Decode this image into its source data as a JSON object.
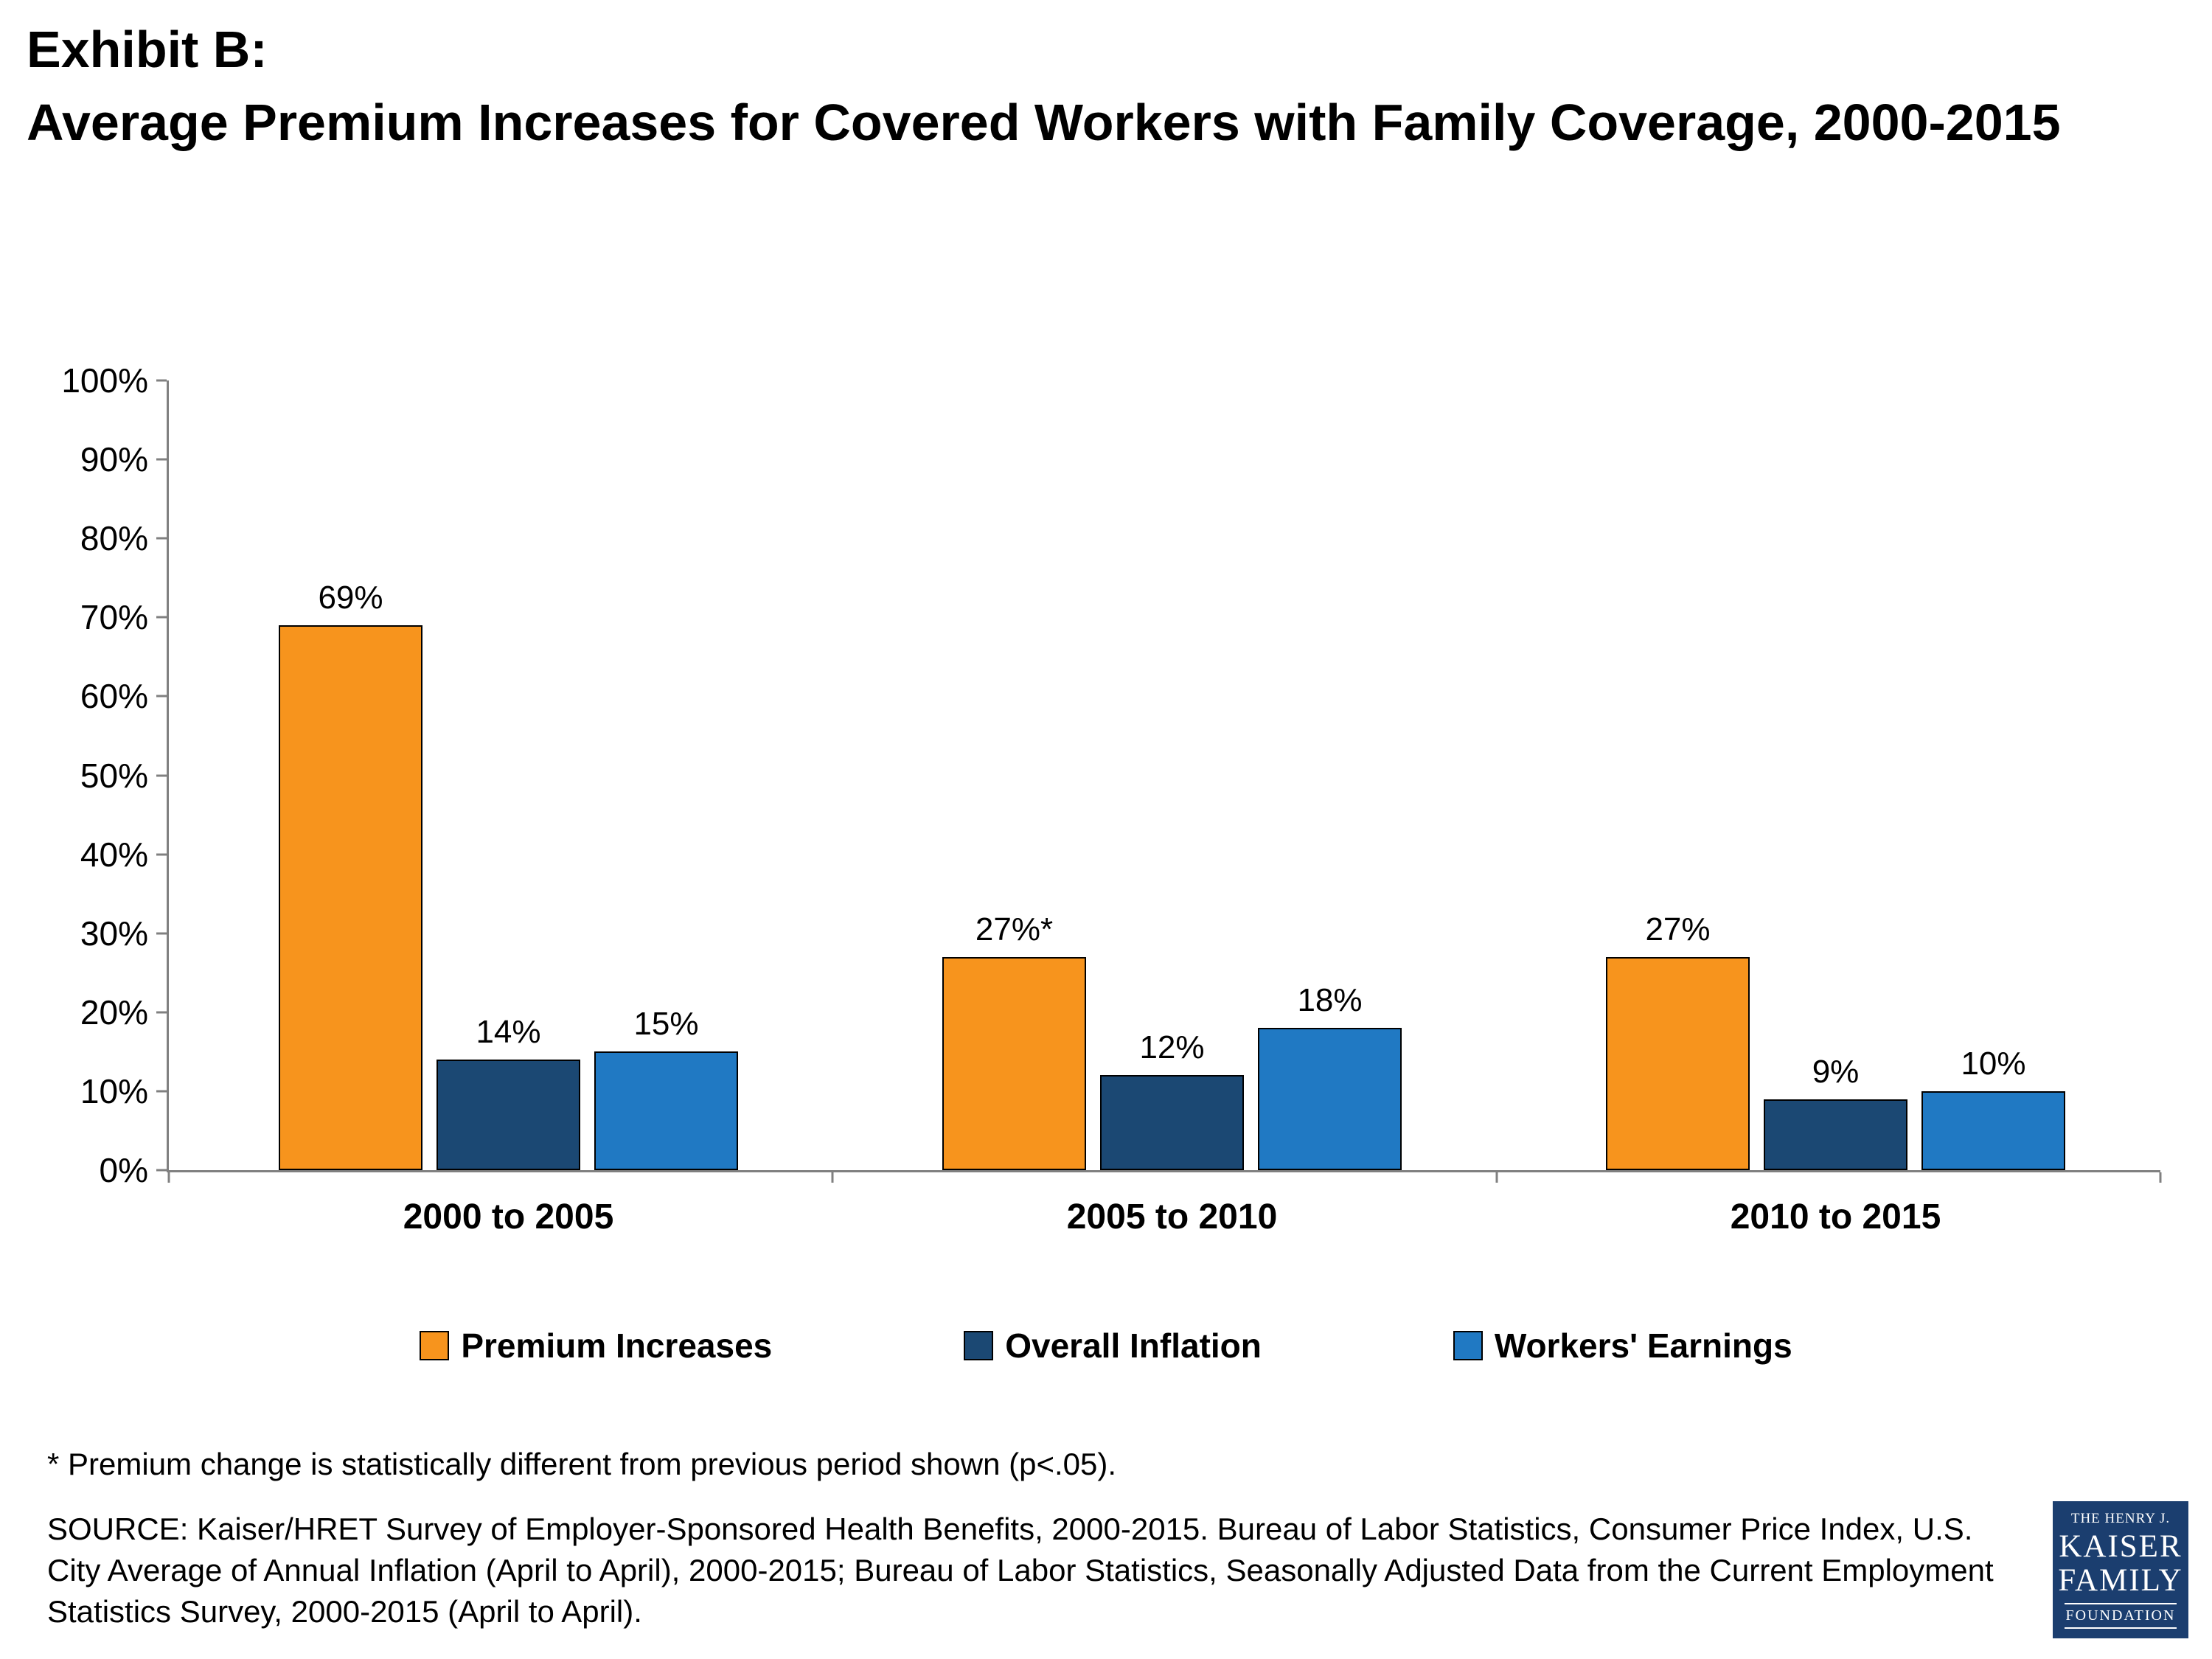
{
  "title": {
    "line1": "Exhibit B:",
    "line2": "Average Premium Increases for Covered Workers with Family Coverage, 2000-2015"
  },
  "chart_data": {
    "type": "bar",
    "categories": [
      "2000 to 2005",
      "2005 to 2010",
      "2010 to 2015"
    ],
    "series": [
      {
        "name": "Premium Increases",
        "color": "#F7941D",
        "values": [
          69,
          27,
          27
        ],
        "labels": [
          "69%",
          "27%*",
          "27%"
        ]
      },
      {
        "name": "Overall Inflation",
        "color": "#1B4873",
        "values": [
          14,
          12,
          9
        ],
        "labels": [
          "14%",
          "12%",
          "9%"
        ]
      },
      {
        "name": "Workers' Earnings",
        "color": "#2079C3",
        "values": [
          15,
          18,
          10
        ],
        "labels": [
          "15%",
          "18%",
          "10%"
        ]
      }
    ],
    "title": "Average Premium Increases for Covered Workers with Family Coverage, 2000-2015",
    "xlabel": "",
    "ylabel": "",
    "ylim": [
      0,
      100
    ],
    "ytick_interval": 10,
    "ytick_labels": [
      "0%",
      "10%",
      "20%",
      "30%",
      "40%",
      "50%",
      "60%",
      "70%",
      "80%",
      "90%",
      "100%"
    ],
    "grid": false,
    "legend_position": "bottom"
  },
  "footnote": "* Premium change is statistically different from previous period shown (p<.05).",
  "source": "SOURCE:  Kaiser/HRET Survey of Employer-Sponsored Health Benefits, 2000-2015.  Bureau of Labor Statistics, Consumer Price Index, U.S. City Average of Annual Inflation (April to April), 2000-2015;  Bureau of Labor Statistics, Seasonally Adjusted Data from the Current Employment Statistics Survey, 2000-2015  (April to April).",
  "logo": {
    "line1": "THE HENRY J.",
    "line2": "KAISER",
    "line3": "FAMILY",
    "line4": "FOUNDATION",
    "background_color": "#1B3E6F"
  },
  "colors": {
    "axis": "#808080",
    "text": "#000000"
  }
}
